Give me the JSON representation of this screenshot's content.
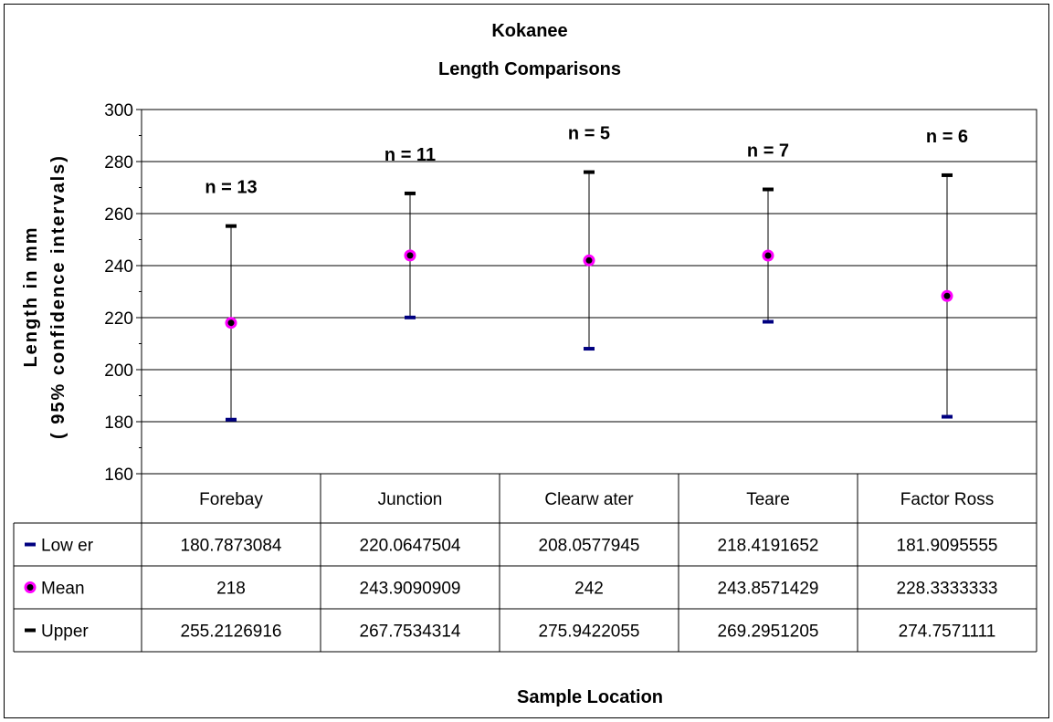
{
  "chart_data": {
    "type": "scatter",
    "title": "Kokanee",
    "subtitle": "Length Comparisons",
    "ylabel": [
      "Length in mm",
      "( 95% confidence intervals)"
    ],
    "xlabel": "Sample Location",
    "ylim": [
      160,
      300
    ],
    "yticks": [
      "160",
      "180",
      "200",
      "220",
      "240",
      "260",
      "280",
      "300"
    ],
    "grid": true,
    "categories": [
      "Forebay",
      "Junction",
      "Clearw ater",
      "Teare",
      "Factor Ross"
    ],
    "n_labels": [
      "n = 13",
      "n = 11",
      "n = 5",
      "n = 7",
      "n = 6"
    ],
    "series": [
      {
        "name": "Low er",
        "color": "#000080",
        "values": [
          180.7873084,
          220.0647504,
          208.0577945,
          218.4191652,
          181.9095555
        ],
        "labels": [
          "180.7873084",
          "220.0647504",
          "208.0577945",
          "218.4191652",
          "181.9095555"
        ]
      },
      {
        "name": "Mean",
        "color": "#ff00ff",
        "values": [
          218,
          243.9090909,
          242,
          243.8571429,
          228.3333333
        ],
        "labels": [
          "218",
          "243.9090909",
          "242",
          "243.8571429",
          "228.3333333"
        ]
      },
      {
        "name": "Upper",
        "color": "#000000",
        "values": [
          255.2126916,
          267.7534314,
          275.9422055,
          269.2951205,
          274.7571111
        ],
        "labels": [
          "255.2126916",
          "267.7534314",
          "275.9422055",
          "269.2951205",
          "274.7571111"
        ]
      }
    ]
  }
}
